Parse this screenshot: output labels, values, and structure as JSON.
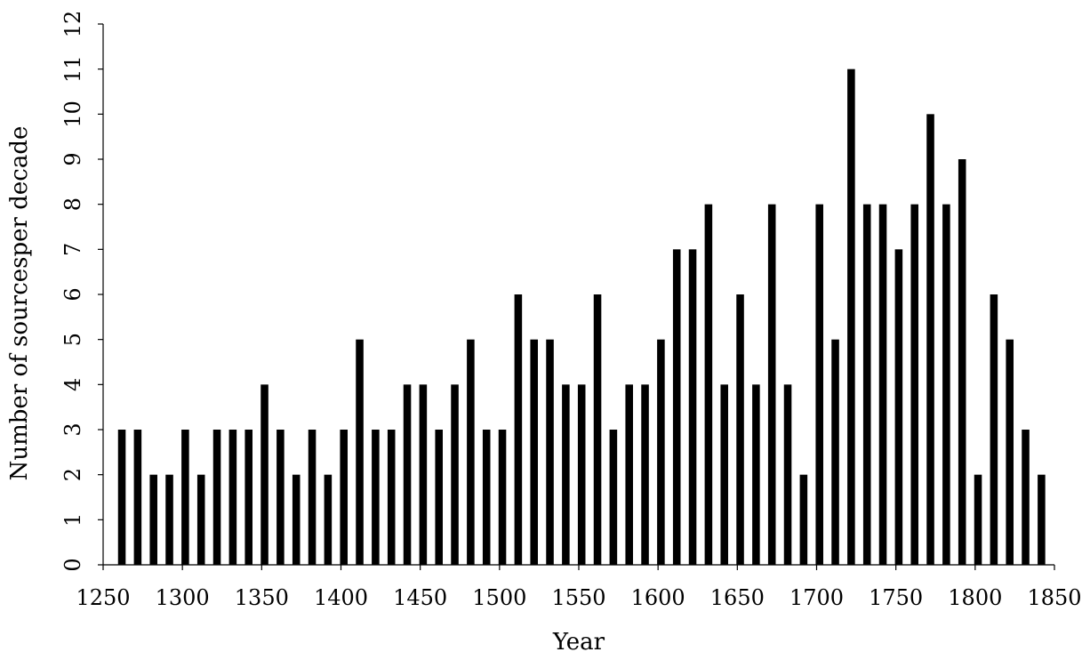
{
  "chart_data": {
    "type": "bar",
    "xlabel": "Year",
    "ylabel": "Number of sourcesper decade",
    "xlim": [
      1250,
      1850
    ],
    "ylim": [
      0,
      12
    ],
    "x_ticks": [
      1250,
      1300,
      1350,
      1400,
      1450,
      1500,
      1550,
      1600,
      1650,
      1700,
      1750,
      1800,
      1850
    ],
    "y_ticks": [
      0,
      1,
      2,
      3,
      4,
      5,
      6,
      7,
      8,
      9,
      10,
      11,
      12
    ],
    "grid": false,
    "bar_color": "#000000",
    "x": [
      1260,
      1270,
      1280,
      1290,
      1300,
      1310,
      1320,
      1330,
      1340,
      1350,
      1360,
      1370,
      1380,
      1390,
      1400,
      1410,
      1420,
      1430,
      1440,
      1450,
      1460,
      1470,
      1480,
      1490,
      1500,
      1510,
      1520,
      1530,
      1540,
      1550,
      1560,
      1570,
      1580,
      1590,
      1600,
      1610,
      1620,
      1630,
      1640,
      1650,
      1660,
      1670,
      1680,
      1690,
      1700,
      1710,
      1720,
      1730,
      1740,
      1750,
      1760,
      1770,
      1780,
      1790,
      1800,
      1810,
      1820,
      1830,
      1840
    ],
    "values": [
      3,
      3,
      2,
      2,
      3,
      2,
      3,
      3,
      3,
      4,
      3,
      2,
      3,
      2,
      3,
      5,
      3,
      3,
      4,
      4,
      3,
      4,
      5,
      3,
      3,
      6,
      5,
      5,
      4,
      4,
      6,
      3,
      4,
      4,
      5,
      7,
      7,
      8,
      4,
      6,
      4,
      8,
      4,
      2,
      8,
      5,
      11,
      8,
      8,
      7,
      8,
      10,
      8,
      9,
      2,
      6,
      5,
      3,
      2
    ]
  }
}
